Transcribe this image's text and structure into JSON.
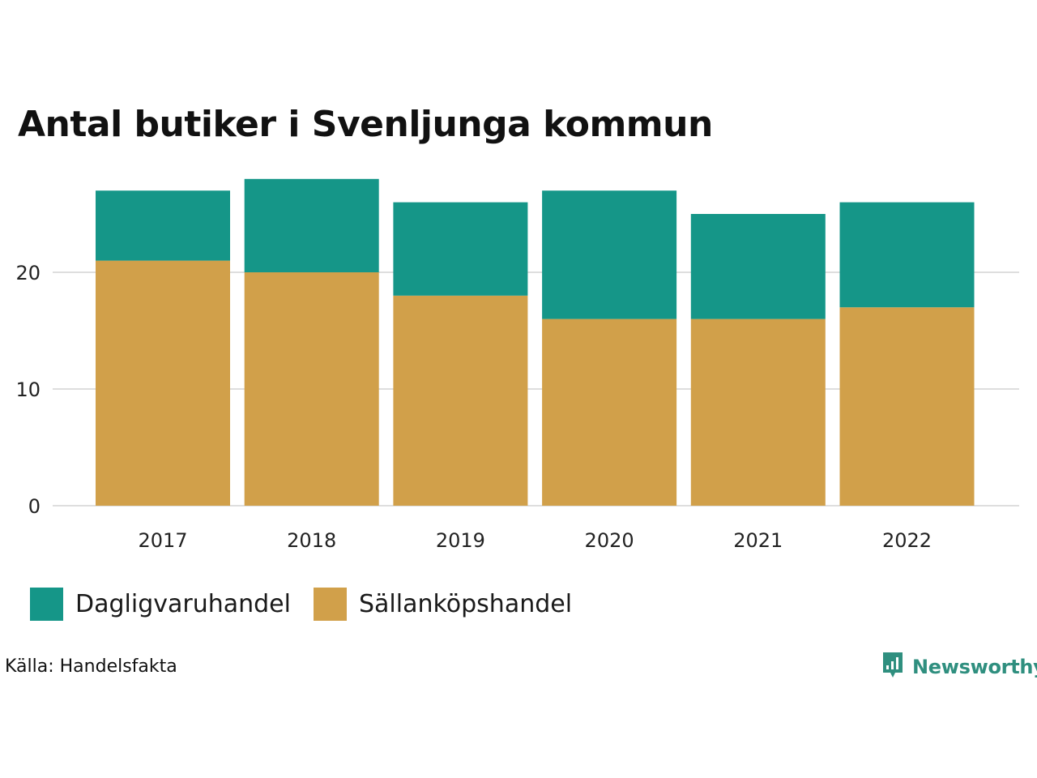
{
  "title": "Antal butiker i Svenljunga kommun",
  "chart_data": {
    "type": "bar",
    "stacked": true,
    "title": "Antal butiker i Svenljunga kommun",
    "categories": [
      "2017",
      "2018",
      "2019",
      "2020",
      "2021",
      "2022"
    ],
    "series": [
      {
        "name": "Sällanköpshandel",
        "color": "#d1a04a",
        "values": [
          21,
          20,
          18,
          16,
          16,
          17
        ]
      },
      {
        "name": "Dagligvaruhandel",
        "color": "#159688",
        "values": [
          6,
          8,
          8,
          11,
          9,
          9
        ]
      }
    ],
    "ylim": [
      0,
      28
    ],
    "yticks": [
      0,
      10,
      20
    ],
    "xlabel": "",
    "ylabel": "",
    "grid": true,
    "legend_position": "bottom-left"
  },
  "legend": {
    "items": [
      {
        "label": "Dagligvaruhandel",
        "color": "#159688"
      },
      {
        "label": "Sällanköpshandel",
        "color": "#d1a04a"
      }
    ]
  },
  "source": "Källa: Handelsfakta",
  "brand": {
    "name": "Newsworthy",
    "icon": "newsworthy-logo-icon",
    "color": "#2f8f7f"
  }
}
